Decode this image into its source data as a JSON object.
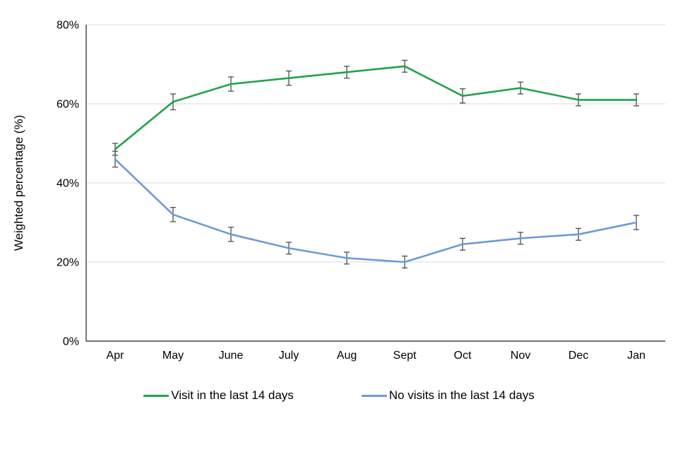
{
  "chart_data": {
    "type": "line",
    "title": "",
    "xlabel": "",
    "ylabel": "Weighted percentage (%)",
    "ylim": [
      0,
      80
    ],
    "yticks": [
      0,
      20,
      40,
      60,
      80
    ],
    "ytick_suffix": "%",
    "grid": "horizontal",
    "legend_position": "bottom",
    "background": "#ffffff",
    "gridline_color": "#d9d9d9",
    "axis_color": "#404040",
    "error_bar_color": "#4d4d4d",
    "categories": [
      "Apr",
      "May",
      "June",
      "July",
      "Aug",
      "Sept",
      "Oct",
      "Nov",
      "Dec",
      "Jan"
    ],
    "series": [
      {
        "name": "Visit in the last 14 days",
        "color": "#1fa34a",
        "values": [
          48.5,
          60.5,
          65,
          66.5,
          68,
          69.5,
          62,
          64,
          61,
          61
        ],
        "errors": [
          1.5,
          2,
          1.8,
          1.8,
          1.5,
          1.5,
          1.8,
          1.5,
          1.5,
          1.5
        ]
      },
      {
        "name": "No visits in the last 14 days",
        "color": "#6b9bd7",
        "values": [
          46,
          32,
          27,
          23.5,
          21,
          20,
          24.5,
          26,
          27,
          30
        ],
        "errors": [
          2,
          1.8,
          1.8,
          1.5,
          1.5,
          1.5,
          1.5,
          1.5,
          1.5,
          1.8
        ]
      }
    ]
  }
}
